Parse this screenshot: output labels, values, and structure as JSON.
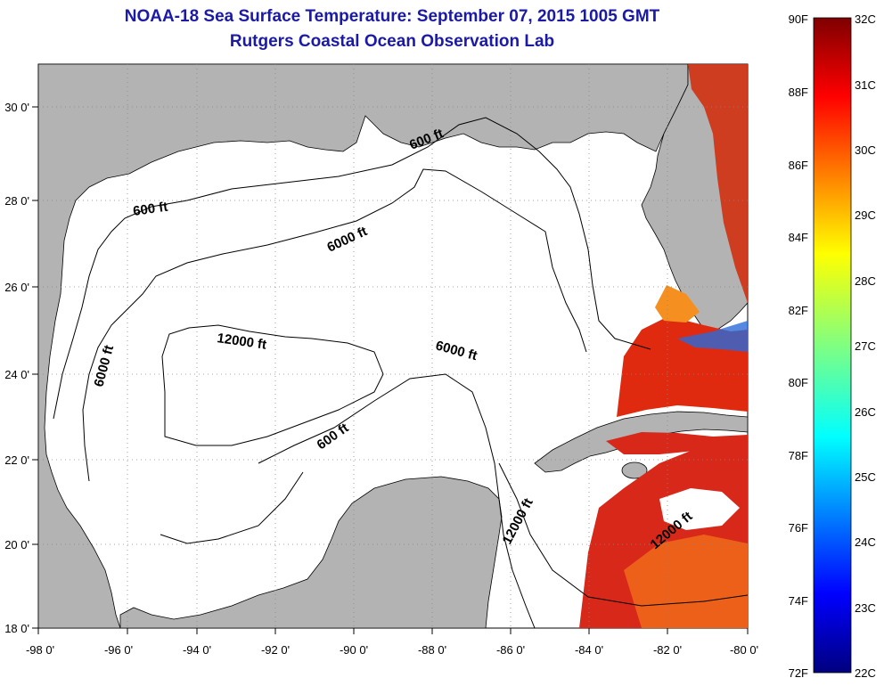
{
  "title": "NOAA-18 Sea Surface Temperature:  September 07, 2015 1005 GMT",
  "subtitle": "Rutgers Coastal Ocean Observation Lab",
  "map": {
    "lon_ticks": [
      "-98 0'",
      "-96 0'",
      "-94 0'",
      "-92 0'",
      "-90 0'",
      "-88 0'",
      "-86 0'",
      "-84 0'",
      "-82 0'",
      "-80 0'"
    ],
    "lat_ticks": [
      "30 0'",
      "28 0'",
      "26 0'",
      "24 0'",
      "22 0'",
      "20 0'",
      "18 0'"
    ],
    "contour_labels": [
      "600 ft",
      "600 ft",
      "600 ft",
      "6000 ft",
      "6000 ft",
      "6000 ft",
      "12000 ft",
      "12000 ft",
      "12000 ft"
    ],
    "colors": {
      "land": "#b3b3b3",
      "ocean": "#ffffff",
      "grid": "#888888",
      "title": "#1a1aa6"
    }
  },
  "colorbar": {
    "fahrenheit": [
      "90F",
      "88F",
      "86F",
      "84F",
      "82F",
      "80F",
      "78F",
      "76F",
      "74F",
      "72F"
    ],
    "celsius": [
      "32C",
      "31C",
      "30C",
      "29C",
      "28C",
      "27C",
      "26C",
      "25C",
      "24C",
      "23C",
      "22C"
    ]
  }
}
